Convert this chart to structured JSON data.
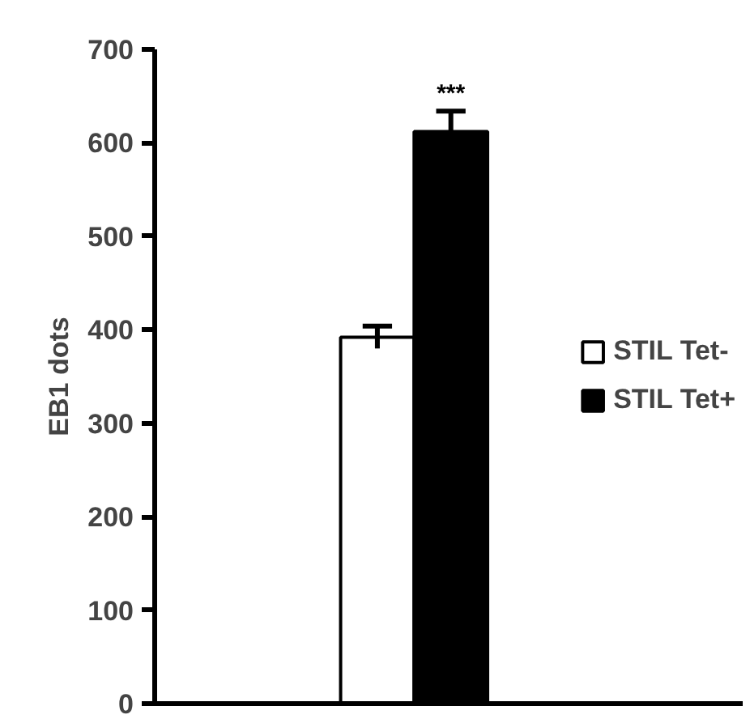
{
  "chart_data": {
    "type": "bar",
    "ylabel": "EB1 dots",
    "categories": [
      null
    ],
    "series": [
      {
        "name": "STIL Tet-",
        "color": "#ffffff",
        "values": [
          392
        ],
        "errors": [
          12
        ]
      },
      {
        "name": "STIL Tet+",
        "color": "#000000",
        "values": [
          612
        ],
        "errors": [
          22
        ]
      }
    ],
    "annotations": [
      "***"
    ],
    "ylim": [
      0,
      700
    ],
    "yticks": [
      0,
      100,
      200,
      300,
      400,
      500,
      600,
      700
    ],
    "legend": "right"
  }
}
